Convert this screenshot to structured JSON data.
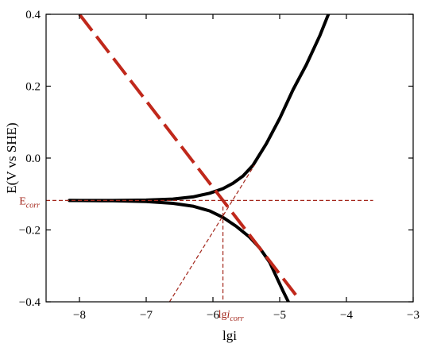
{
  "chart_data": {
    "type": "line",
    "title": "",
    "xlabel": "lgi",
    "ylabel": "E(V vs SHE)",
    "xlim": [
      -8.5,
      -3
    ],
    "ylim": [
      -0.4,
      0.4
    ],
    "x_ticks": [
      -8,
      -7,
      -6,
      -5,
      -4,
      -3
    ],
    "x_tick_labels": [
      "−8",
      "−7",
      "−6",
      "−5",
      "−4",
      "−3"
    ],
    "y_ticks": [
      -0.4,
      -0.2,
      0.0,
      0.2,
      0.4
    ],
    "y_tick_labels": [
      "−0.4",
      "−0.2",
      "0.0",
      "0.2",
      "0.4"
    ],
    "grid": false,
    "legend": "none",
    "series": [
      {
        "role": "measured-anodic-branch",
        "color": "#000000",
        "style": "solid",
        "x": [
          -8.15,
          -7.5,
          -7.0,
          -6.6,
          -6.3,
          -6.05,
          -5.85,
          -5.7,
          -5.55,
          -5.4,
          -5.2,
          -5.0,
          -4.8,
          -4.6,
          -4.4,
          -4.27
        ],
        "y": [
          -0.118,
          -0.118,
          -0.117,
          -0.114,
          -0.108,
          -0.098,
          -0.085,
          -0.07,
          -0.05,
          -0.02,
          0.04,
          0.11,
          0.19,
          0.26,
          0.34,
          0.4
        ]
      },
      {
        "role": "measured-cathodic-branch",
        "color": "#000000",
        "style": "solid",
        "x": [
          -8.15,
          -7.5,
          -7.0,
          -6.6,
          -6.3,
          -6.05,
          -5.85,
          -5.65,
          -5.45,
          -5.3,
          -5.15,
          -5.05,
          -4.95,
          -4.87
        ],
        "y": [
          -0.118,
          -0.119,
          -0.121,
          -0.126,
          -0.134,
          -0.147,
          -0.165,
          -0.19,
          -0.22,
          -0.25,
          -0.29,
          -0.33,
          -0.37,
          -0.4
        ]
      },
      {
        "role": "cathodic-tafel-extrapolation",
        "color": "#c0281b",
        "style": "long-dash",
        "x": [
          -8.0,
          -4.72
        ],
        "y": [
          0.4,
          -0.39
        ]
      },
      {
        "role": "anodic-tafel-extrapolation",
        "color": "#a3261b",
        "style": "short-dash",
        "x": [
          -6.65,
          -5.38
        ],
        "y": [
          -0.4,
          -0.02
        ]
      },
      {
        "role": "E-corr-guide",
        "color": "#a3261b",
        "style": "short-dash",
        "x": [
          -8.5,
          -3.6
        ],
        "y": [
          -0.118,
          -0.118
        ]
      },
      {
        "role": "lgi-corr-guide",
        "color": "#a3261b",
        "style": "short-dash",
        "x": [
          -5.85,
          -5.85
        ],
        "y": [
          -0.135,
          -0.4
        ]
      }
    ],
    "annotations": [
      {
        "text": "E",
        "subscript": "corr",
        "color": "#a3261b",
        "x": -8.5,
        "y": -0.118,
        "anchor": "right"
      },
      {
        "text": "lg",
        "italic_part": "i",
        "subscript": "corr",
        "color": "#a3261b",
        "x": -5.85,
        "y": -0.4,
        "anchor": "below"
      }
    ]
  }
}
